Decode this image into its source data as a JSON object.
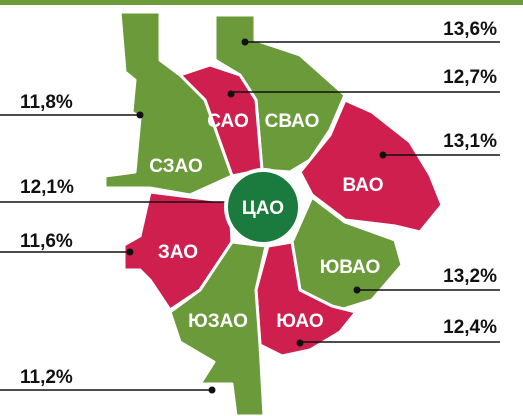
{
  "center": {
    "name": "ЦАО",
    "share": "12,1%"
  },
  "districts": [
    {
      "name": "СВАО",
      "share": "13,6%"
    },
    {
      "name": "САО",
      "share": "12,7%"
    },
    {
      "name": "СЗАО",
      "share": "11,8%"
    },
    {
      "name": "ВАО",
      "share": "13,1%"
    },
    {
      "name": "ЗАО",
      "share": "11,6%"
    },
    {
      "name": "ЮВАО",
      "share": "13,2%"
    },
    {
      "name": "ЮАО",
      "share": "12,4%"
    },
    {
      "name": "ЮЗАО",
      "share": "11,2%"
    }
  ]
}
